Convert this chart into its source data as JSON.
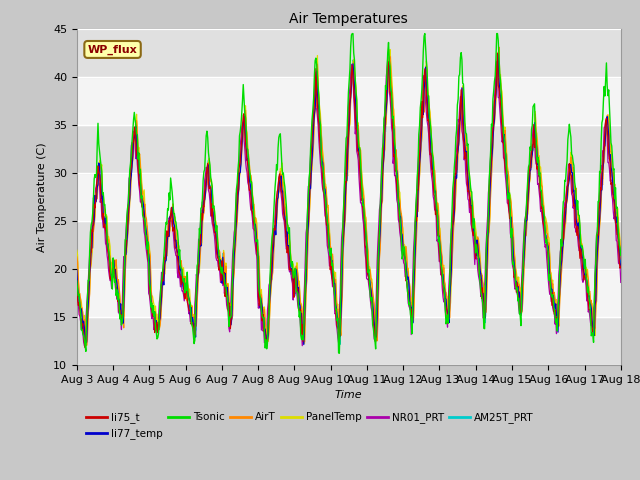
{
  "title": "Air Temperatures",
  "xlabel": "Time",
  "ylabel": "Air Temperature (C)",
  "ylim": [
    10,
    45
  ],
  "x_tick_labels": [
    "Aug 3",
    "Aug 4",
    "Aug 5",
    "Aug 6",
    "Aug 7",
    "Aug 8",
    "Aug 9",
    "Aug 10",
    "Aug 11",
    "Aug 12",
    "Aug 13",
    "Aug 14",
    "Aug 15",
    "Aug 16",
    "Aug 17",
    "Aug 18"
  ],
  "legend_entries": [
    {
      "label": "li75_t",
      "color": "#cc0000"
    },
    {
      "label": "li77_temp",
      "color": "#0000cc"
    },
    {
      "label": "Tsonic",
      "color": "#00dd00"
    },
    {
      "label": "AirT",
      "color": "#ff8800"
    },
    {
      "label": "PanelTemp",
      "color": "#dddd00"
    },
    {
      "label": "NR01_PRT",
      "color": "#aa00aa"
    },
    {
      "label": "AM25T_PRT",
      "color": "#00cccc"
    }
  ],
  "annotation_text": "WP_flux",
  "n_days": 15,
  "n_per_day": 48
}
